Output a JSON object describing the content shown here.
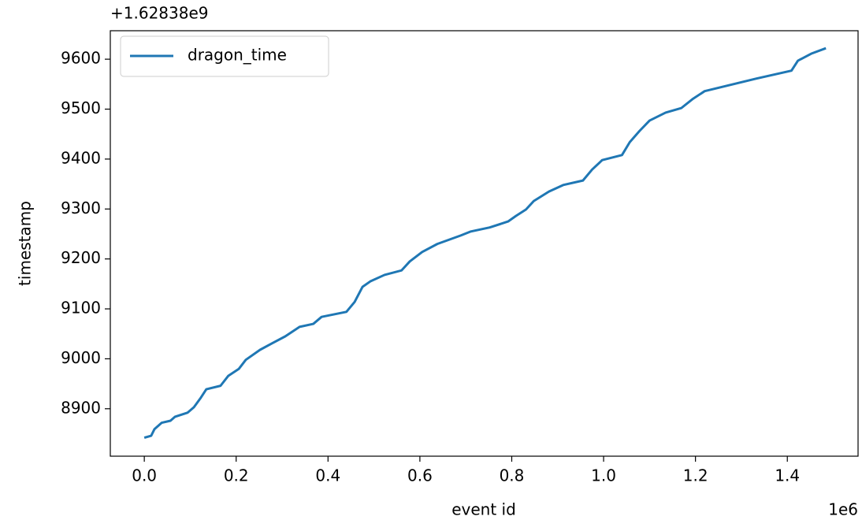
{
  "chart_data": {
    "type": "line",
    "y_offset_label": "+1.62838e9",
    "x_scale_label": "1e6",
    "xlabel": "event id",
    "ylabel": "timestamp",
    "x": [
      0,
      0.015,
      0.022,
      0.038,
      0.057,
      0.067,
      0.094,
      0.108,
      0.123,
      0.135,
      0.166,
      0.183,
      0.206,
      0.221,
      0.252,
      0.278,
      0.307,
      0.338,
      0.368,
      0.386,
      0.44,
      0.458,
      0.475,
      0.492,
      0.523,
      0.56,
      0.578,
      0.605,
      0.638,
      0.689,
      0.711,
      0.752,
      0.792,
      0.809,
      0.831,
      0.848,
      0.881,
      0.912,
      0.955,
      0.975,
      0.997,
      1.04,
      1.057,
      1.078,
      1.1,
      1.135,
      1.169,
      1.195,
      1.22,
      1.332,
      1.409,
      1.423,
      1.452,
      1.484
    ],
    "series": [
      {
        "name": "dragon_time",
        "color": "#1f77b4",
        "values": [
          8842,
          8846,
          8859,
          8872,
          8876,
          8884,
          8892,
          8903,
          8922,
          8939,
          8946,
          8966,
          8980,
          8998,
          9018,
          9031,
          9045,
          9064,
          9070,
          9084,
          9094,
          9114,
          9144,
          9155,
          9168,
          9177,
          9195,
          9214,
          9230,
          9247,
          9255,
          9263,
          9275,
          9286,
          9299,
          9316,
          9335,
          9348,
          9357,
          9379,
          9398,
          9408,
          9434,
          9456,
          9477,
          9493,
          9502,
          9521,
          9536,
          9561,
          9577,
          9597,
          9611,
          9622
        ]
      }
    ],
    "xlim": [
      -0.074,
      1.554
    ],
    "xticks": [
      {
        "value": 0,
        "label": "0.0"
      },
      0.2,
      0.4,
      0.6,
      0.8,
      {
        "value": 1,
        "label": "1.0"
      },
      1.2,
      1.4
    ],
    "ylim": [
      8805,
      9657
    ],
    "yticks": [
      8900,
      9000,
      9100,
      9200,
      9300,
      9400,
      9500,
      9600
    ],
    "legend": "upper left",
    "grid": false
  }
}
